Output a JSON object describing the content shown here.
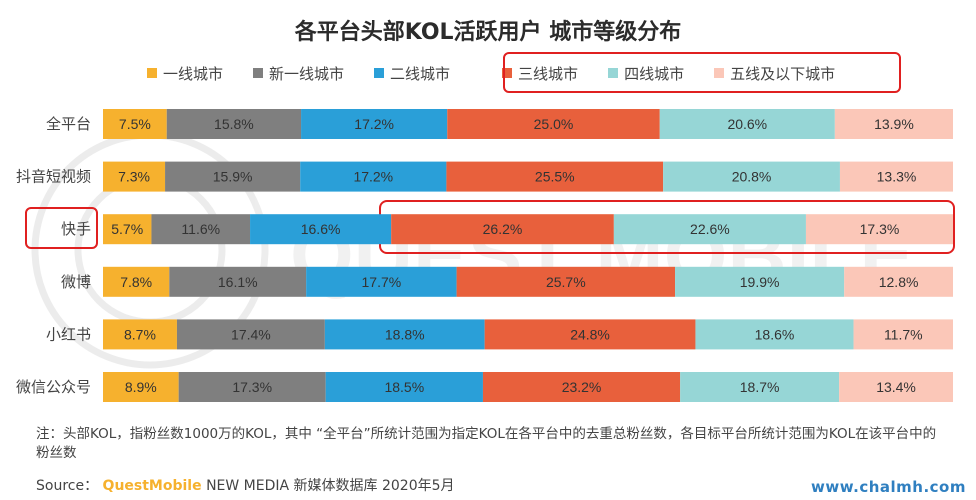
{
  "chart_data": {
    "type": "bar",
    "orientation": "horizontal",
    "stacked": true,
    "title": "各平台头部KOL活跃用户 城市等级分布",
    "categories": [
      "全平台",
      "抖音短视频",
      "快手",
      "微博",
      "小红书",
      "微信公众号"
    ],
    "series": [
      {
        "name": "一线城市",
        "color": "#f6b12e",
        "values": [
          7.5,
          7.3,
          5.7,
          7.8,
          8.7,
          8.9
        ]
      },
      {
        "name": "新一线城市",
        "color": "#7f7f7f",
        "values": [
          15.8,
          15.9,
          11.6,
          16.1,
          17.4,
          17.3
        ]
      },
      {
        "name": "二线城市",
        "color": "#2a9fd8",
        "values": [
          17.2,
          17.2,
          16.6,
          17.7,
          18.8,
          18.5
        ]
      },
      {
        "name": "三线城市",
        "color": "#e8603c",
        "values": [
          25.0,
          25.5,
          26.2,
          25.7,
          24.8,
          23.2
        ]
      },
      {
        "name": "四线城市",
        "color": "#96d6d6",
        "values": [
          20.6,
          20.8,
          22.6,
          19.9,
          18.6,
          18.7
        ]
      },
      {
        "name": "五线及以下城市",
        "color": "#fbc7b8",
        "values": [
          13.9,
          13.3,
          17.3,
          12.8,
          11.7,
          13.4
        ]
      }
    ],
    "value_suffix": "%",
    "xlim": [
      0,
      100
    ],
    "grid": false,
    "legend_position": "top",
    "highlight": {
      "legend_series": [
        "三线城市",
        "四线城市",
        "五线及以下城市"
      ],
      "category": "快手",
      "category_series": [
        "三线城市",
        "四线城市",
        "五线及以下城市"
      ],
      "color": "#e02020"
    }
  },
  "note": "注：头部KOL，指粉丝数1000万的KOL，其中 “全平台”所统计范围为指定KOL在各平台中的去重总粉丝数，各目标平台所统计范围为KOL在该平台中的粉丝数",
  "source": {
    "label": "Source：",
    "brand": "QuestMobile",
    "text": "NEW MEDIA 新媒体数据库 2020年5月"
  },
  "watermark_text": "QUEST MOBILE",
  "footer_site": "www.chalmh.com"
}
